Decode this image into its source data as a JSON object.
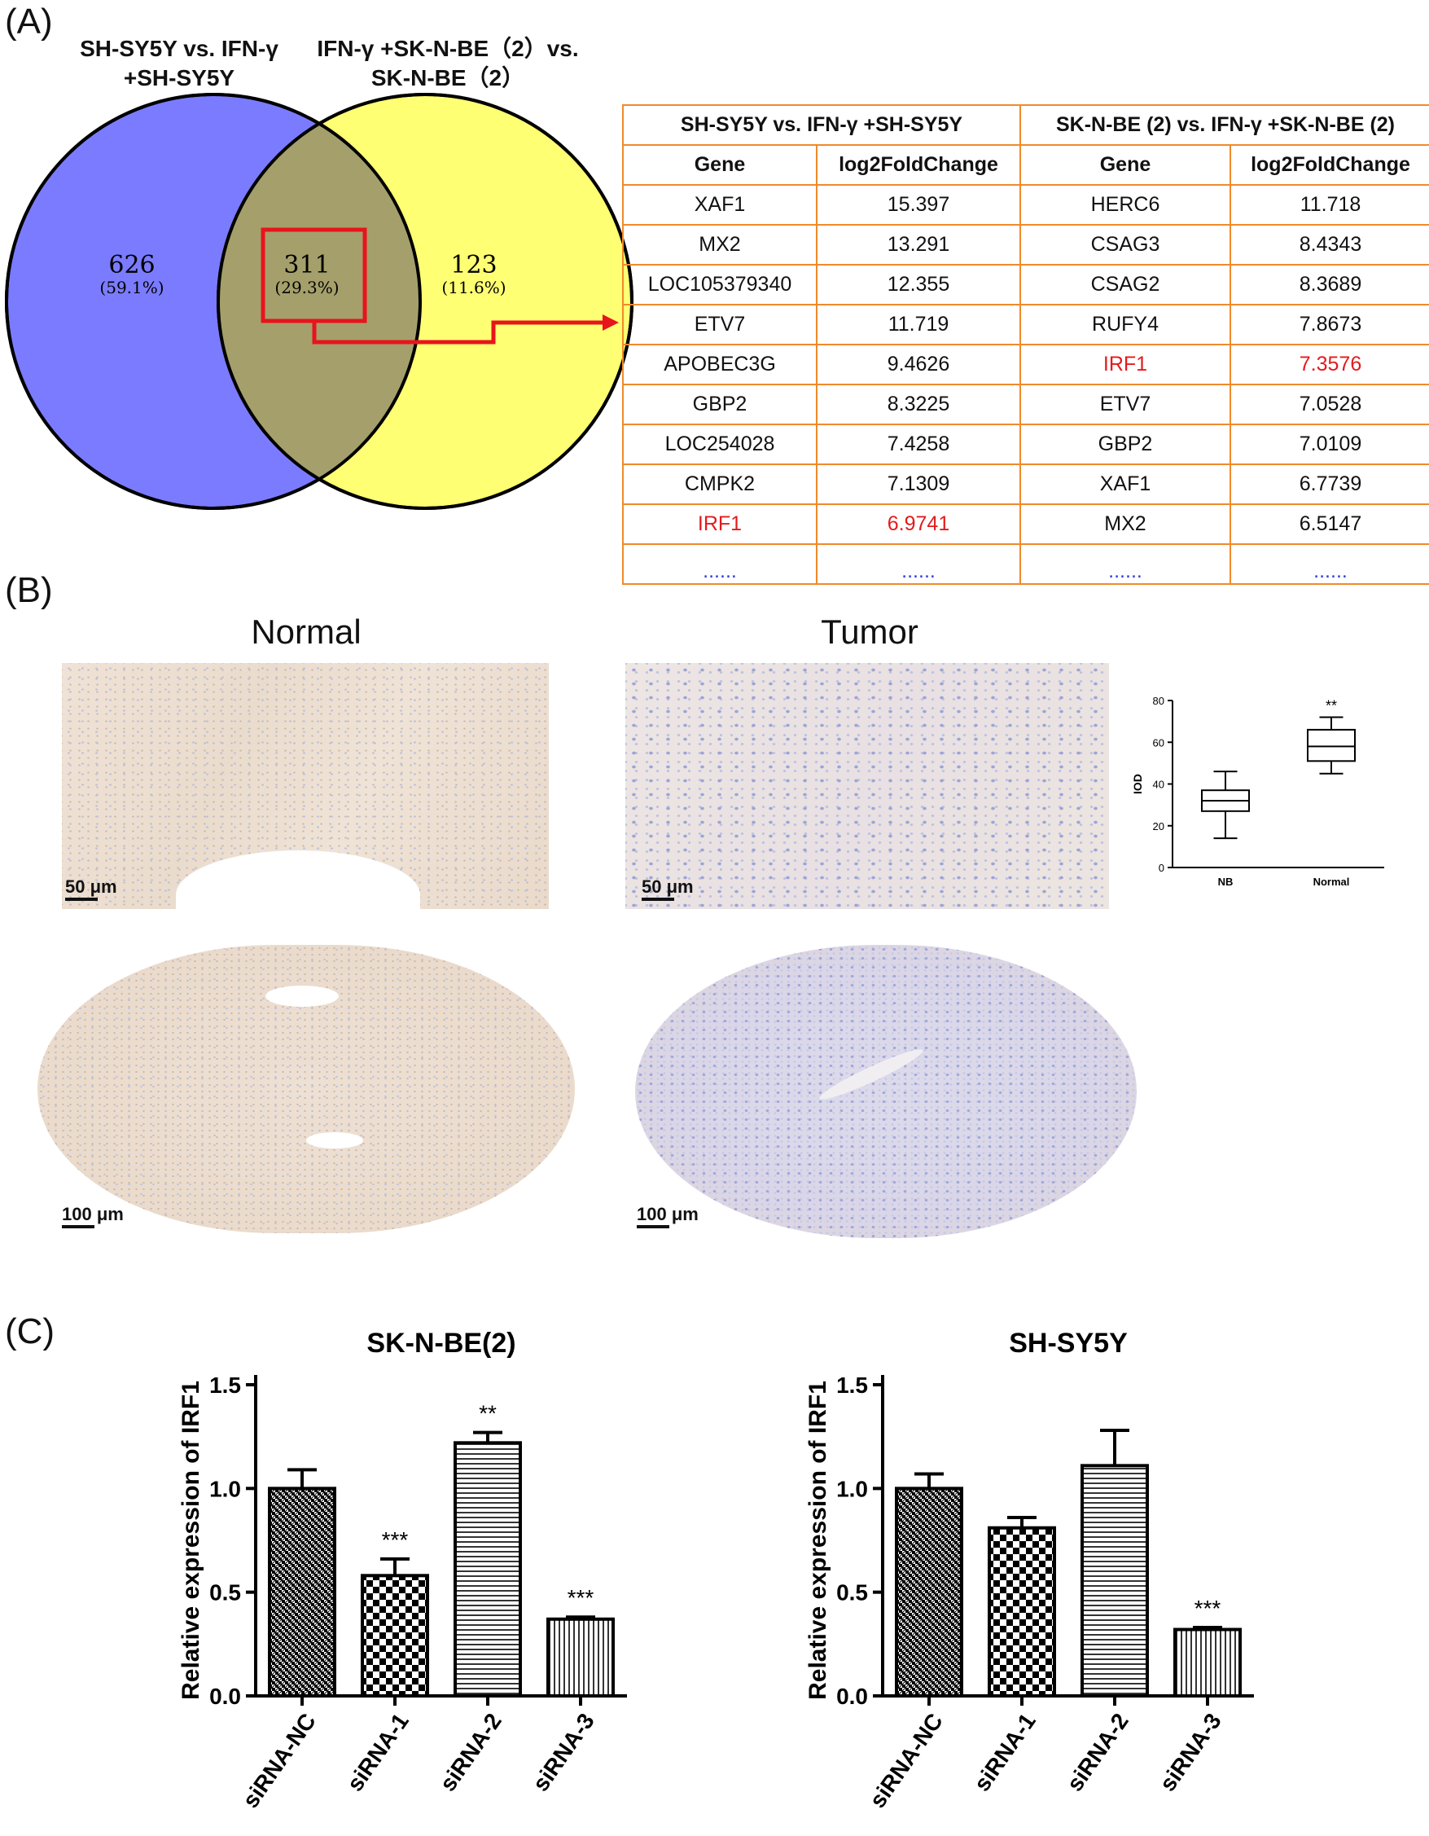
{
  "panel_a": {
    "letter": "(A)",
    "left_title": [
      "SH-SY5Y vs. IFN-γ",
      "+SH-SY5Y"
    ],
    "right_title": [
      "IFN-γ +SK-N-BE（2）vs.",
      "SK-N-BE（2）"
    ],
    "venn": [
      {
        "count": "626",
        "pct": "(59.1%)"
      },
      {
        "count": "311",
        "pct": "(29.3%)"
      },
      {
        "count": "123",
        "pct": "(11.6%)"
      }
    ],
    "colors": {
      "left": "#7b7bff",
      "right": "#ffff73",
      "overlap": "#a5a06b",
      "box": "#e8141c",
      "table_border": "#f08a2a"
    },
    "table": {
      "left_header": "SH-SY5Y vs. IFN-γ +SH-SY5Y",
      "right_header": "SK-N-BE (2) vs. IFN-γ +SK-N-BE (2)",
      "col_gene": "Gene",
      "col_fc": "log2FoldChange",
      "rows": [
        {
          "g1": "XAF1",
          "v1": "15.397",
          "g2": "HERC6",
          "v2": "11.718"
        },
        {
          "g1": "MX2",
          "v1": "13.291",
          "g2": "CSAG3",
          "v2": "8.4343"
        },
        {
          "g1": "LOC105379340",
          "v1": "12.355",
          "g2": "CSAG2",
          "v2": "8.3689"
        },
        {
          "g1": "ETV7",
          "v1": "11.719",
          "g2": "RUFY4",
          "v2": "7.8673"
        },
        {
          "g1": "APOBEC3G",
          "v1": "9.4626",
          "g2": "IRF1",
          "v2": "7.3576"
        },
        {
          "g1": "GBP2",
          "v1": "8.3225",
          "g2": "ETV7",
          "v2": "7.0528"
        },
        {
          "g1": "LOC254028",
          "v1": "7.4258",
          "g2": "GBP2",
          "v2": "7.0109"
        },
        {
          "g1": "CMPK2",
          "v1": "7.1309",
          "g2": "XAF1",
          "v2": "6.7739"
        },
        {
          "g1": "IRF1",
          "v1": "6.9741",
          "g2": "MX2",
          "v2": "6.5147"
        }
      ],
      "ellipsis": "......"
    }
  },
  "panel_b": {
    "letter": "(B)",
    "normal": "Normal",
    "tumor": "Tumor",
    "scale_small": "50 μm",
    "scale_large": "100 μm"
  },
  "chart_data": [
    {
      "type": "box",
      "title": "",
      "ylabel": "IOD",
      "categories": [
        "NB",
        "Normal"
      ],
      "ylim": [
        0,
        80
      ],
      "yticks": [
        0,
        20,
        40,
        60,
        80
      ],
      "boxes": [
        {
          "min": 14,
          "q1": 27,
          "median": 32,
          "q3": 37,
          "max": 46
        },
        {
          "min": 45,
          "q1": 51,
          "median": 58,
          "q3": 66,
          "max": 72
        }
      ],
      "annotations": [
        "",
        "**"
      ]
    },
    {
      "type": "bar",
      "title": "SK-N-BE(2)",
      "ylabel": "Relative expression of IRF1",
      "categories": [
        "siRNA-NC",
        "siRNA-1",
        "siRNA-2",
        "siRNA-3"
      ],
      "values": [
        1.0,
        0.58,
        1.22,
        0.37
      ],
      "errors": [
        0.09,
        0.08,
        0.05,
        0.01
      ],
      "annotations": [
        "",
        "***",
        "**",
        "***"
      ],
      "ylim": [
        0,
        1.5
      ],
      "yticks": [
        "0.0",
        "0.5",
        "1.0",
        "1.5"
      ]
    },
    {
      "type": "bar",
      "title": "SH-SY5Y",
      "ylabel": "Relative expression of IRF1",
      "categories": [
        "siRNA-NC",
        "siRNA-1",
        "siRNA-2",
        "siRNA-3"
      ],
      "values": [
        1.0,
        0.81,
        1.11,
        0.32
      ],
      "errors": [
        0.07,
        0.05,
        0.17,
        0.01
      ],
      "annotations": [
        "",
        "",
        "",
        "***"
      ],
      "ylim": [
        0,
        1.5
      ],
      "yticks": [
        "0.0",
        "0.5",
        "1.0",
        "1.5"
      ]
    }
  ],
  "panel_c": {
    "letter": "(C)"
  }
}
